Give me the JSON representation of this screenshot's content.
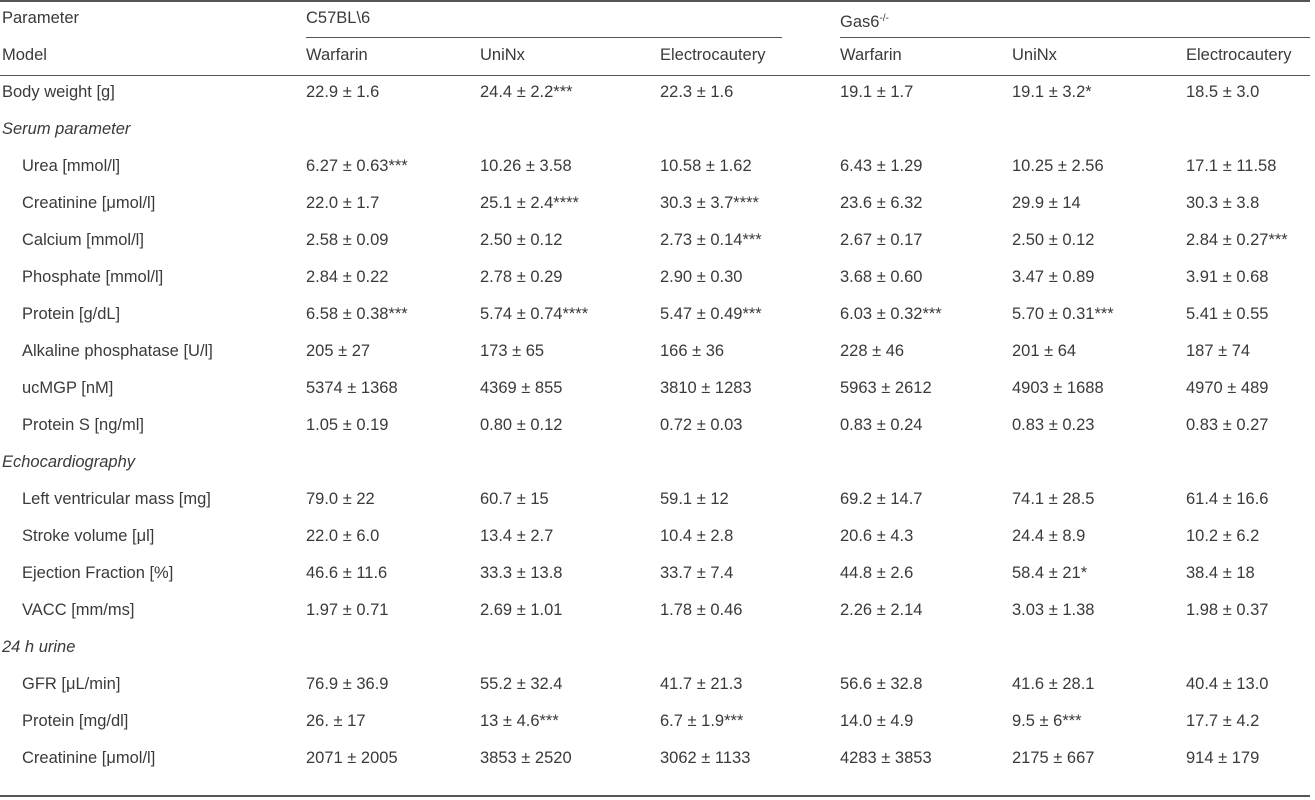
{
  "header": {
    "row1": {
      "param": "Parameter",
      "group1": "C57BL\\6",
      "group2_base": "Gas6",
      "group2_sup": "-/-"
    },
    "row2": [
      "Model",
      "Warfarin",
      "UniNx",
      "Electrocautery",
      "Warfarin",
      "UniNx",
      "Electrocautery"
    ]
  },
  "rows": [
    {
      "type": "data",
      "indent": false,
      "cells": [
        "Body weight [g]",
        "22.9 ± 1.6",
        "24.4 ± 2.2***",
        "22.3 ± 1.6",
        "19.1 ± 1.7",
        "19.1 ± 3.2*",
        "18.5 ± 3.0"
      ]
    },
    {
      "type": "section",
      "label": "Serum parameter"
    },
    {
      "type": "data",
      "indent": true,
      "cells": [
        "Urea [mmol/l]",
        "6.27 ± 0.63***",
        "10.26 ± 3.58",
        "10.58 ± 1.62",
        "6.43 ± 1.29",
        "10.25 ± 2.56",
        "17.1 ± 11.58"
      ]
    },
    {
      "type": "data",
      "indent": true,
      "cells": [
        "Creatinine [μmol/l]",
        "22.0 ± 1.7",
        "25.1 ± 2.4****",
        "30.3 ± 3.7****",
        "23.6 ± 6.32",
        "29.9 ± 14",
        "30.3 ± 3.8"
      ]
    },
    {
      "type": "data",
      "indent": true,
      "cells": [
        "Calcium [mmol/l]",
        "2.58 ± 0.09",
        "2.50 ± 0.12",
        "2.73 ± 0.14***",
        "2.67 ± 0.17",
        "2.50 ± 0.12",
        "2.84 ± 0.27***"
      ]
    },
    {
      "type": "data",
      "indent": true,
      "cells": [
        "Phosphate [mmol/l]",
        "2.84 ± 0.22",
        "2.78 ± 0.29",
        "2.90 ± 0.30",
        "3.68 ± 0.60",
        "3.47 ± 0.89",
        "3.91 ± 0.68"
      ]
    },
    {
      "type": "data",
      "indent": true,
      "cells": [
        "Protein [g/dL]",
        "6.58 ± 0.38***",
        "5.74 ± 0.74****",
        "5.47 ± 0.49***",
        "6.03 ± 0.32***",
        "5.70 ± 0.31***",
        "5.41 ± 0.55"
      ]
    },
    {
      "type": "data",
      "indent": true,
      "cells": [
        "Alkaline phosphatase [U/l]",
        "205 ± 27",
        "173 ± 65",
        "166 ± 36",
        "228 ± 46",
        "201 ± 64",
        "187 ± 74"
      ]
    },
    {
      "type": "data",
      "indent": true,
      "cells": [
        "ucMGP [nM]",
        "5374 ± 1368",
        "4369 ± 855",
        "3810 ± 1283",
        "5963 ± 2612",
        "4903 ± 1688",
        "4970 ± 489"
      ]
    },
    {
      "type": "data",
      "indent": true,
      "cells": [
        "Protein S [ng/ml]",
        "1.05 ± 0.19",
        "0.80 ± 0.12",
        "0.72 ± 0.03",
        "0.83 ± 0.24",
        "0.83 ± 0.23",
        "0.83 ± 0.27"
      ]
    },
    {
      "type": "section",
      "label": "Echocardiography"
    },
    {
      "type": "data",
      "indent": true,
      "cells": [
        "Left ventricular mass [mg]",
        "79.0 ± 22",
        "60.7 ± 15",
        "59.1 ± 12",
        "69.2 ± 14.7",
        "74.1 ± 28.5",
        "61.4 ± 16.6"
      ]
    },
    {
      "type": "data",
      "indent": true,
      "cells": [
        "Stroke volume [μl]",
        "22.0 ± 6.0",
        "13.4 ± 2.7",
        "10.4 ± 2.8",
        "20.6 ± 4.3",
        "24.4 ± 8.9",
        "10.2 ± 6.2"
      ]
    },
    {
      "type": "data",
      "indent": true,
      "cells": [
        "Ejection Fraction [%]",
        "46.6 ± 11.6",
        "33.3 ± 13.8",
        "33.7 ± 7.4",
        "44.8 ± 2.6",
        "58.4 ± 21*",
        "38.4 ± 18"
      ]
    },
    {
      "type": "data",
      "indent": true,
      "cells": [
        "VACC [mm/ms]",
        "1.97 ± 0.71",
        "2.69 ± 1.01",
        "1.78 ± 0.46",
        "2.26 ± 2.14",
        "3.03 ± 1.38",
        "1.98 ± 0.37"
      ]
    },
    {
      "type": "section",
      "label": "24 h urine"
    },
    {
      "type": "data",
      "indent": true,
      "cells": [
        "GFR [μL/min]",
        "76.9 ± 36.9",
        "55.2 ± 32.4",
        "41.7 ± 21.3",
        "56.6 ± 32.8",
        "41.6 ± 28.1",
        "40.4 ± 13.0"
      ]
    },
    {
      "type": "data",
      "indent": true,
      "cells": [
        "Protein [mg/dl]",
        "26. ± 17",
        "13 ± 4.6***",
        "6.7 ± 1.9***",
        "14.0 ± 4.9",
        "9.5 ± 6***",
        "17.7 ± 4.2"
      ]
    },
    {
      "type": "data",
      "indent": true,
      "cells": [
        "Creatinine [μmol/l]",
        "2071 ± 2005",
        "3853 ± 2520",
        "3062 ± 1133",
        "4283 ± 3853",
        "2175 ± 667",
        "914 ± 179"
      ]
    }
  ]
}
